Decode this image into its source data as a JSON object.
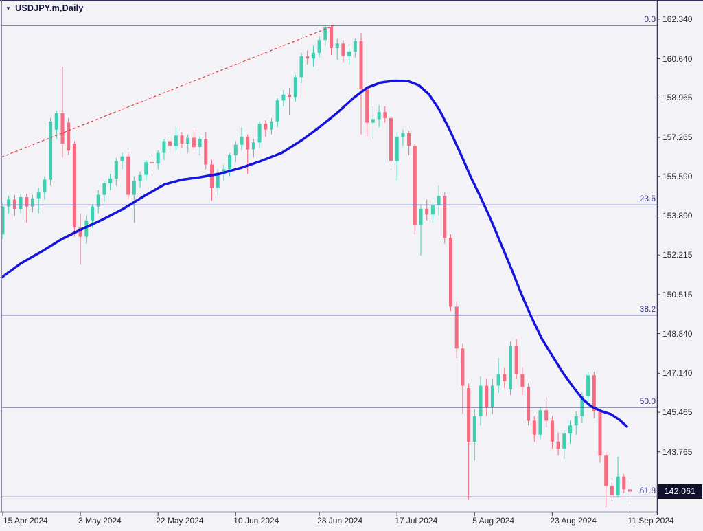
{
  "window": {
    "symbol_label": "USDJPY.m,Daily",
    "triangle_icon": "▼"
  },
  "y_axis": {
    "tick_labels": [
      "162.340",
      "160.640",
      "158.965",
      "157.265",
      "155.590",
      "153.890",
      "152.215",
      "150.515",
      "148.840",
      "147.140",
      "145.465",
      "143.765"
    ],
    "current_price_label": "142.061"
  },
  "x_axis": {
    "ticks": [
      {
        "label": "15 Apr 2024",
        "candle_index": 0
      },
      {
        "label": "3 May 2024",
        "candle_index": 13
      },
      {
        "label": "22 May 2024",
        "candle_index": 26
      },
      {
        "label": "10 Jun 2024",
        "candle_index": 39
      },
      {
        "label": "28 Jun 2024",
        "candle_index": 53
      },
      {
        "label": "17 Jul 2024",
        "candle_index": 66
      },
      {
        "label": "5 Aug 2024",
        "candle_index": 79
      },
      {
        "label": "23 Aug 2024",
        "candle_index": 92
      },
      {
        "label": "11 Sep 2024",
        "candle_index": 105
      }
    ]
  },
  "chart_data": {
    "type": "candlestick",
    "title": "USDJPY.m Daily",
    "price_axis_ticks": [
      162.34,
      160.64,
      158.965,
      157.265,
      155.59,
      153.89,
      152.215,
      150.515,
      148.84,
      147.14,
      145.465,
      143.765
    ],
    "visible_price_range": [
      140.9,
      162.6
    ],
    "current_price": 142.061,
    "up_color": "#3fd0b4",
    "down_color": "#f56b81",
    "candles_ohlc": [
      [
        153.1,
        154.45,
        152.9,
        154.3
      ],
      [
        154.3,
        154.75,
        154.0,
        154.6
      ],
      [
        154.6,
        154.8,
        153.9,
        154.2
      ],
      [
        154.2,
        154.85,
        154.0,
        154.7
      ],
      [
        154.7,
        154.85,
        153.6,
        154.3
      ],
      [
        154.3,
        154.8,
        154.05,
        154.65
      ],
      [
        154.65,
        155.1,
        154.0,
        154.9
      ],
      [
        154.9,
        155.6,
        154.6,
        155.45
      ],
      [
        155.45,
        158.1,
        155.2,
        157.95
      ],
      [
        157.6,
        158.4,
        157.2,
        158.3
      ],
      [
        158.3,
        160.3,
        156.4,
        157.0
      ],
      [
        157.9,
        158.1,
        156.5,
        156.7
      ],
      [
        157.0,
        157.1,
        153.0,
        153.4
      ],
      [
        153.4,
        154.0,
        151.8,
        153.0
      ],
      [
        153.0,
        153.9,
        152.7,
        153.7
      ],
      [
        153.7,
        154.4,
        153.4,
        154.3
      ],
      [
        154.3,
        155.0,
        154.0,
        154.8
      ],
      [
        154.8,
        155.4,
        154.5,
        155.3
      ],
      [
        155.3,
        155.7,
        155.0,
        155.5
      ],
      [
        155.5,
        156.4,
        155.2,
        156.25
      ],
      [
        156.25,
        156.6,
        155.9,
        156.45
      ],
      [
        156.45,
        156.65,
        154.6,
        154.8
      ],
      [
        154.8,
        155.6,
        153.6,
        155.4
      ],
      [
        155.4,
        155.8,
        155.1,
        155.65
      ],
      [
        155.65,
        156.3,
        155.4,
        156.2
      ],
      [
        156.2,
        156.5,
        155.8,
        156.15
      ],
      [
        156.15,
        156.7,
        155.9,
        156.6
      ],
      [
        156.6,
        157.2,
        156.3,
        157.1
      ],
      [
        157.1,
        157.3,
        156.6,
        156.9
      ],
      [
        156.9,
        157.7,
        156.7,
        157.35
      ],
      [
        157.35,
        157.5,
        156.8,
        157.0
      ],
      [
        157.0,
        157.4,
        156.6,
        157.25
      ],
      [
        157.25,
        157.6,
        156.7,
        156.85
      ],
      [
        156.85,
        157.3,
        156.5,
        157.2
      ],
      [
        157.2,
        157.5,
        155.9,
        156.1
      ],
      [
        156.1,
        156.3,
        154.55,
        155.1
      ],
      [
        155.1,
        155.9,
        154.8,
        155.75
      ],
      [
        155.75,
        156.1,
        155.4,
        155.9
      ],
      [
        155.9,
        156.6,
        155.6,
        156.5
      ],
      [
        156.5,
        157.1,
        156.2,
        156.95
      ],
      [
        156.95,
        157.7,
        156.7,
        157.3
      ],
      [
        157.3,
        157.4,
        155.7,
        156.75
      ],
      [
        156.75,
        157.2,
        156.4,
        157.05
      ],
      [
        157.05,
        157.95,
        156.8,
        157.85
      ],
      [
        157.85,
        158.0,
        157.3,
        157.6
      ],
      [
        157.6,
        158.1,
        157.4,
        157.95
      ],
      [
        157.95,
        158.95,
        157.7,
        158.85
      ],
      [
        158.85,
        159.3,
        158.6,
        159.1
      ],
      [
        159.1,
        159.4,
        158.2,
        159.0
      ],
      [
        159.0,
        159.95,
        158.8,
        159.85
      ],
      [
        159.85,
        160.9,
        159.6,
        160.75
      ],
      [
        160.75,
        161.0,
        160.4,
        160.65
      ],
      [
        160.65,
        161.2,
        160.3,
        160.9
      ],
      [
        160.9,
        161.6,
        160.7,
        161.45
      ],
      [
        161.45,
        162.1,
        161.2,
        162.0
      ],
      [
        162.0,
        162.05,
        160.8,
        161.1
      ],
      [
        161.1,
        161.5,
        160.6,
        161.3
      ],
      [
        161.3,
        161.45,
        160.5,
        160.75
      ],
      [
        160.75,
        161.1,
        160.4,
        160.95
      ],
      [
        160.95,
        161.5,
        160.7,
        161.4
      ],
      [
        161.4,
        161.75,
        157.4,
        159.35
      ],
      [
        159.35,
        159.45,
        157.3,
        157.9
      ],
      [
        157.9,
        158.6,
        157.2,
        158.05
      ],
      [
        158.05,
        158.65,
        157.7,
        158.35
      ],
      [
        158.35,
        158.6,
        157.9,
        158.1
      ],
      [
        158.1,
        158.2,
        156.0,
        156.25
      ],
      [
        156.25,
        157.5,
        155.4,
        157.3
      ],
      [
        157.3,
        157.6,
        156.9,
        157.45
      ],
      [
        157.45,
        157.55,
        156.5,
        156.9
      ],
      [
        156.9,
        157.0,
        153.1,
        153.5
      ],
      [
        153.5,
        154.4,
        152.2,
        154.2
      ],
      [
        154.2,
        154.6,
        153.7,
        153.95
      ],
      [
        153.95,
        154.5,
        153.6,
        154.35
      ],
      [
        154.35,
        155.2,
        153.9,
        154.75
      ],
      [
        154.75,
        154.9,
        152.7,
        152.95
      ],
      [
        152.95,
        153.1,
        149.8,
        150.0
      ],
      [
        150.0,
        150.2,
        147.8,
        148.2
      ],
      [
        148.2,
        148.4,
        145.4,
        146.6
      ],
      [
        146.5,
        146.7,
        141.7,
        144.2
      ],
      [
        144.2,
        145.6,
        143.4,
        145.3
      ],
      [
        145.3,
        147.0,
        144.9,
        146.6
      ],
      [
        146.6,
        146.9,
        145.3,
        145.7
      ],
      [
        145.7,
        146.9,
        145.4,
        146.6
      ],
      [
        146.6,
        147.8,
        146.3,
        147.1
      ],
      [
        147.1,
        147.4,
        146.5,
        146.8
      ],
      [
        146.45,
        148.5,
        146.2,
        148.3
      ],
      [
        148.3,
        148.6,
        146.9,
        147.1
      ],
      [
        147.1,
        147.4,
        146.2,
        146.55
      ],
      [
        146.55,
        146.7,
        144.9,
        145.1
      ],
      [
        145.1,
        145.3,
        144.2,
        144.5
      ],
      [
        144.5,
        145.7,
        144.3,
        145.55
      ],
      [
        145.55,
        146.1,
        144.8,
        145.1
      ],
      [
        145.1,
        145.3,
        143.9,
        144.2
      ],
      [
        144.2,
        144.6,
        143.6,
        143.9
      ],
      [
        143.9,
        144.7,
        143.45,
        144.55
      ],
      [
        144.55,
        145.1,
        144.1,
        144.9
      ],
      [
        144.9,
        145.5,
        144.5,
        145.3
      ],
      [
        145.3,
        146.3,
        145.0,
        146.15
      ],
      [
        146.15,
        147.2,
        145.7,
        147.05
      ],
      [
        147.05,
        147.2,
        145.2,
        145.5
      ],
      [
        145.5,
        145.6,
        143.3,
        143.6
      ],
      [
        143.6,
        143.75,
        141.4,
        142.3
      ],
      [
        142.3,
        142.45,
        141.65,
        141.9
      ],
      [
        141.9,
        143.55,
        141.8,
        142.7
      ],
      [
        142.7,
        142.8,
        142.0,
        142.15
      ],
      [
        142.15,
        142.5,
        141.6,
        142.06
      ]
    ],
    "moving_average": {
      "color": "#1414dc",
      "points_index_price": [
        [
          -0.2,
          151.25
        ],
        [
          3,
          151.85
        ],
        [
          6.4,
          152.35
        ],
        [
          9.9,
          152.9
        ],
        [
          13,
          153.3
        ],
        [
          16.8,
          153.75
        ],
        [
          20.2,
          154.2
        ],
        [
          23.7,
          154.75
        ],
        [
          27.1,
          155.25
        ],
        [
          30,
          155.45
        ],
        [
          32.9,
          155.55
        ],
        [
          36.3,
          155.7
        ],
        [
          39.8,
          155.95
        ],
        [
          43.2,
          156.25
        ],
        [
          46.7,
          156.6
        ],
        [
          50.1,
          157.15
        ],
        [
          53,
          157.7
        ],
        [
          55.9,
          158.3
        ],
        [
          58.7,
          158.95
        ],
        [
          61,
          159.4
        ],
        [
          63.3,
          159.62
        ],
        [
          65.6,
          159.7
        ],
        [
          67.9,
          159.68
        ],
        [
          69.7,
          159.5
        ],
        [
          71.4,
          159.1
        ],
        [
          73.1,
          158.45
        ],
        [
          74.8,
          157.6
        ],
        [
          76.6,
          156.6
        ],
        [
          78.3,
          155.6
        ],
        [
          80,
          154.7
        ],
        [
          81.7,
          153.75
        ],
        [
          83.4,
          152.7
        ],
        [
          85.2,
          151.6
        ],
        [
          86.9,
          150.5
        ],
        [
          88.6,
          149.5
        ],
        [
          90.3,
          148.6
        ],
        [
          92.1,
          147.85
        ],
        [
          93.8,
          147.15
        ],
        [
          95.5,
          146.55
        ],
        [
          97.2,
          146.0
        ],
        [
          98.6,
          145.7
        ],
        [
          100.1,
          145.52
        ],
        [
          101.8,
          145.38
        ],
        [
          103.2,
          145.15
        ],
        [
          104.5,
          144.85
        ]
      ]
    },
    "trendline": {
      "color": "#e43a3a",
      "style": "dashed",
      "from": {
        "index": -0.2,
        "price": 156.42
      },
      "to": {
        "index": 55.4,
        "price": 162.06
      }
    },
    "fib_retracement": {
      "line_color": "#5c5c94",
      "levels": [
        {
          "label": "0.0",
          "price": 162.07
        },
        {
          "label": "23.6",
          "price": 154.37
        },
        {
          "label": "38.2",
          "price": 149.63
        },
        {
          "label": "50.0",
          "price": 145.67
        },
        {
          "label": "61.8",
          "price": 141.83
        }
      ]
    }
  }
}
